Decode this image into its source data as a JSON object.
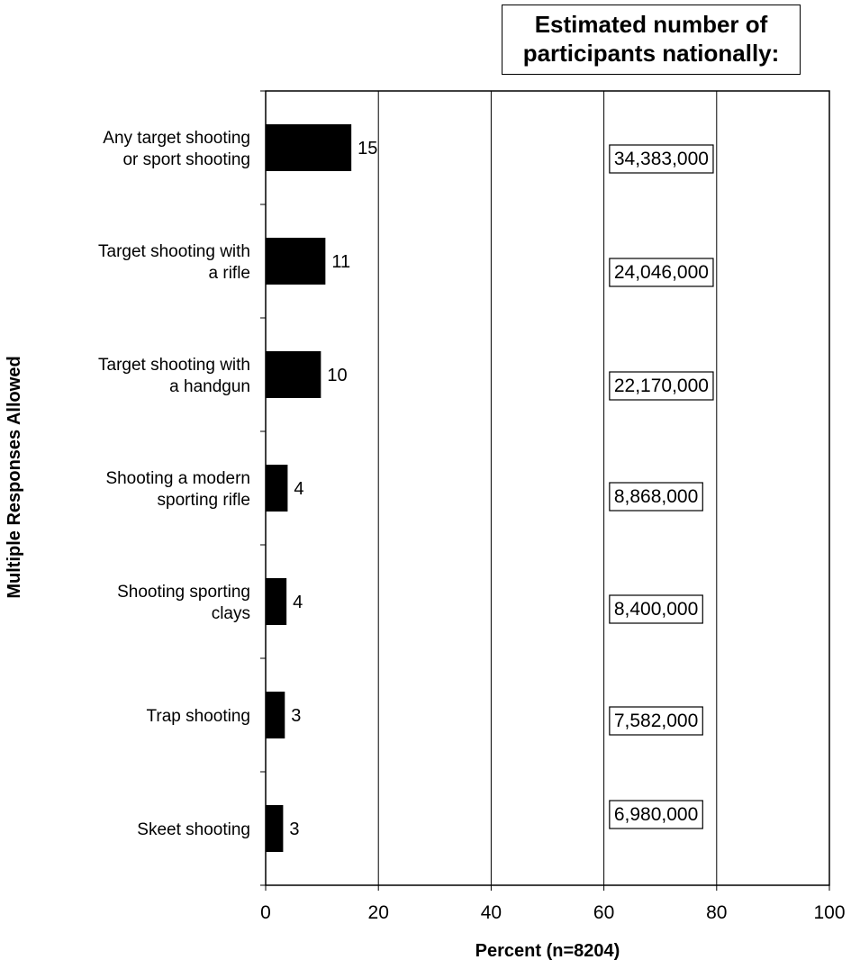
{
  "chart_data": {
    "type": "bar",
    "orientation": "horizontal",
    "categories": [
      [
        "Any target shooting",
        "or sport shooting"
      ],
      [
        "Target shooting with",
        "a rifle"
      ],
      [
        "Target shooting with",
        "a handgun"
      ],
      [
        "Shooting a modern",
        "sporting rifle"
      ],
      [
        "Shooting sporting",
        "clays"
      ],
      [
        "Trap shooting"
      ],
      [
        "Skeet shooting"
      ]
    ],
    "values": [
      15.2,
      10.6,
      9.8,
      3.9,
      3.7,
      3.4,
      3.1
    ],
    "data_labels": [
      "15",
      "11",
      "10",
      "4",
      "4",
      "3",
      "3"
    ],
    "estimates": [
      "34,383,000",
      "24,046,000",
      "22,170,000",
      "8,868,000",
      "8,400,000",
      "7,582,000",
      "6,980,000"
    ],
    "estimates_title": [
      "Estimated number of",
      "participants nationally:"
    ],
    "xlabel": "Percent (n=8204)",
    "ylabel": "Multiple Responses Allowed",
    "xlim": [
      0,
      100
    ],
    "xticks": [
      "0",
      "20",
      "40",
      "60",
      "80",
      "100"
    ],
    "grid": true,
    "bar_color": "#000000"
  }
}
